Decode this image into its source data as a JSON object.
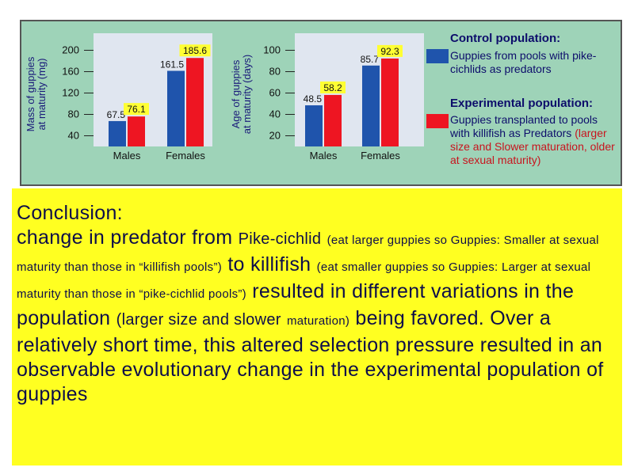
{
  "chart_data": [
    {
      "type": "bar",
      "ylabel": "Mass of guppies at maturity (mg)",
      "ylabel_lines": [
        "Mass of guppies",
        "at maturity (mg)"
      ],
      "categories": [
        "Males",
        "Females"
      ],
      "yticks": [
        40,
        80,
        120,
        160,
        200
      ],
      "ylim": [
        20,
        220
      ],
      "series": [
        {
          "name": "Control population",
          "color": "#1f54ac",
          "values": [
            67.5,
            161.5
          ],
          "labels": [
            "67.5",
            "161.5"
          ]
        },
        {
          "name": "Experimental population",
          "color": "#ee1522",
          "values": [
            76.1,
            185.6
          ],
          "labels": [
            "76.1",
            "185.6"
          ]
        }
      ]
    },
    {
      "type": "bar",
      "ylabel": "Age of guppies at maturity (days)",
      "ylabel_lines": [
        "Age of guppies",
        "at maturity (days)"
      ],
      "categories": [
        "Males",
        "Females"
      ],
      "yticks": [
        20,
        40,
        60,
        80,
        100
      ],
      "ylim": [
        10,
        110
      ],
      "series": [
        {
          "name": "Control population",
          "color": "#1f54ac",
          "values": [
            48.5,
            85.7
          ],
          "labels": [
            "48.5",
            "85.7"
          ]
        },
        {
          "name": "Experimental population",
          "color": "#ee1522",
          "values": [
            58.2,
            92.3
          ],
          "labels": [
            "58.2",
            "92.3"
          ]
        }
      ]
    }
  ],
  "legend": {
    "control_title": "Control population:",
    "control_text": "Guppies from pools with pike-cichlids as predators",
    "experimental_title": "Experimental population:",
    "experimental_text": "Guppies transplanted to pools with killifish as",
    "experimental_highlight_1": "Predators",
    "experimental_highlight_2": "(larger size and Slower maturation, older at sexual maturity)"
  },
  "conclusion": {
    "heading": "Conclusion:",
    "p1": "change in predator from",
    "p2": "Pike-cichlid",
    "p3": "(eat larger guppies so Guppies: Smaller at sexual maturity than those in “killifish pools”)",
    "p4": "to",
    "p5": "killifish",
    "p6": "(eat smaller guppies so Guppies: Larger at sexual maturity than those in “pike-cichlid pools”)",
    "p7": "resulted in different variations in the population",
    "p8": "(larger size and slower",
    "p9": "maturation)",
    "p10": "being favored. Over a relatively short time, this altered selection pressure resulted in an observable evolutionary change in the experimental population of guppies"
  }
}
